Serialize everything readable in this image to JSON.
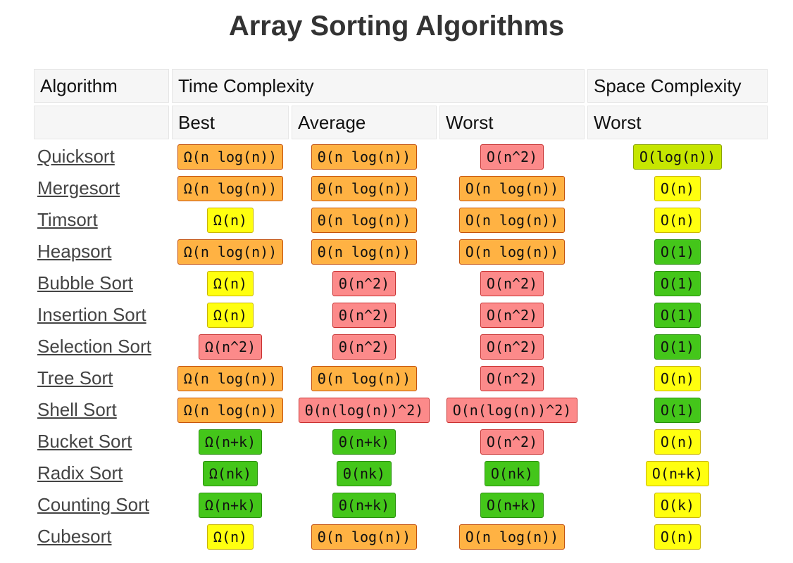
{
  "title": "Array Sorting Algorithms",
  "colors": {
    "green": "#44c61a",
    "lime": "#c6e600",
    "yellow": "#ffff0f",
    "orange": "#ffb243",
    "red": "#fc8a8a",
    "header_bg": "#f6f6f6"
  },
  "headers": {
    "algorithm": "Algorithm",
    "time_complexity": "Time Complexity",
    "space_complexity": "Space Complexity",
    "best": "Best",
    "average": "Average",
    "worst": "Worst",
    "space_worst": "Worst"
  },
  "rows": [
    {
      "name": "Quicksort",
      "best": {
        "text": "Ω(n log(n))",
        "color": "orange"
      },
      "avg": {
        "text": "Θ(n log(n))",
        "color": "orange"
      },
      "worst": {
        "text": "O(n^2)",
        "color": "red"
      },
      "space": {
        "text": "O(log(n))",
        "color": "lime"
      }
    },
    {
      "name": "Mergesort",
      "best": {
        "text": "Ω(n log(n))",
        "color": "orange"
      },
      "avg": {
        "text": "Θ(n log(n))",
        "color": "orange"
      },
      "worst": {
        "text": "O(n log(n))",
        "color": "orange"
      },
      "space": {
        "text": "O(n)",
        "color": "yellow"
      }
    },
    {
      "name": "Timsort",
      "best": {
        "text": "Ω(n)",
        "color": "yellow"
      },
      "avg": {
        "text": "Θ(n log(n))",
        "color": "orange"
      },
      "worst": {
        "text": "O(n log(n))",
        "color": "orange"
      },
      "space": {
        "text": "O(n)",
        "color": "yellow"
      }
    },
    {
      "name": "Heapsort",
      "best": {
        "text": "Ω(n log(n))",
        "color": "orange"
      },
      "avg": {
        "text": "Θ(n log(n))",
        "color": "orange"
      },
      "worst": {
        "text": "O(n log(n))",
        "color": "orange"
      },
      "space": {
        "text": "O(1)",
        "color": "green"
      }
    },
    {
      "name": "Bubble Sort",
      "best": {
        "text": "Ω(n)",
        "color": "yellow"
      },
      "avg": {
        "text": "Θ(n^2)",
        "color": "red"
      },
      "worst": {
        "text": "O(n^2)",
        "color": "red"
      },
      "space": {
        "text": "O(1)",
        "color": "green"
      }
    },
    {
      "name": "Insertion Sort",
      "best": {
        "text": "Ω(n)",
        "color": "yellow"
      },
      "avg": {
        "text": "Θ(n^2)",
        "color": "red"
      },
      "worst": {
        "text": "O(n^2)",
        "color": "red"
      },
      "space": {
        "text": "O(1)",
        "color": "green"
      }
    },
    {
      "name": "Selection Sort",
      "best": {
        "text": "Ω(n^2)",
        "color": "red"
      },
      "avg": {
        "text": "Θ(n^2)",
        "color": "red"
      },
      "worst": {
        "text": "O(n^2)",
        "color": "red"
      },
      "space": {
        "text": "O(1)",
        "color": "green"
      }
    },
    {
      "name": "Tree Sort",
      "best": {
        "text": "Ω(n log(n))",
        "color": "orange"
      },
      "avg": {
        "text": "Θ(n log(n))",
        "color": "orange"
      },
      "worst": {
        "text": "O(n^2)",
        "color": "red"
      },
      "space": {
        "text": "O(n)",
        "color": "yellow"
      }
    },
    {
      "name": "Shell Sort",
      "best": {
        "text": "Ω(n log(n))",
        "color": "orange"
      },
      "avg": {
        "text": "Θ(n(log(n))^2)",
        "color": "red"
      },
      "worst": {
        "text": "O(n(log(n))^2)",
        "color": "red"
      },
      "space": {
        "text": "O(1)",
        "color": "green"
      }
    },
    {
      "name": "Bucket Sort",
      "best": {
        "text": "Ω(n+k)",
        "color": "green"
      },
      "avg": {
        "text": "Θ(n+k)",
        "color": "green"
      },
      "worst": {
        "text": "O(n^2)",
        "color": "red"
      },
      "space": {
        "text": "O(n)",
        "color": "yellow"
      }
    },
    {
      "name": "Radix Sort",
      "best": {
        "text": "Ω(nk)",
        "color": "green"
      },
      "avg": {
        "text": "Θ(nk)",
        "color": "green"
      },
      "worst": {
        "text": "O(nk)",
        "color": "green"
      },
      "space": {
        "text": "O(n+k)",
        "color": "yellow"
      }
    },
    {
      "name": "Counting Sort",
      "best": {
        "text": "Ω(n+k)",
        "color": "green"
      },
      "avg": {
        "text": "Θ(n+k)",
        "color": "green"
      },
      "worst": {
        "text": "O(n+k)",
        "color": "green"
      },
      "space": {
        "text": "O(k)",
        "color": "yellow"
      }
    },
    {
      "name": "Cubesort",
      "best": {
        "text": "Ω(n)",
        "color": "yellow"
      },
      "avg": {
        "text": "Θ(n log(n))",
        "color": "orange"
      },
      "worst": {
        "text": "O(n log(n))",
        "color": "orange"
      },
      "space": {
        "text": "O(n)",
        "color": "yellow"
      }
    }
  ]
}
